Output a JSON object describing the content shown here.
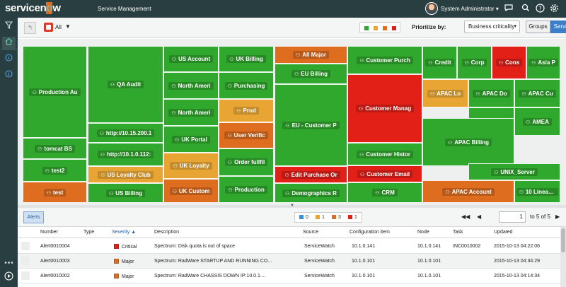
{
  "header": {
    "logo": "servicenow",
    "app_title": "Service Management",
    "user_name": "System Administrator",
    "user_caret": "▾",
    "icons": [
      "chat-icon",
      "search-icon",
      "help-icon",
      "gear-icon"
    ]
  },
  "leftnav": {
    "icons": [
      "filter-icon",
      "home-icon",
      "info-icon",
      "ellipsis-icon",
      "play-icon"
    ]
  },
  "toolbar": {
    "filter_label": "All",
    "filter_caret": "▼",
    "legend_colors": [
      "#2fa82d",
      "#e8a534",
      "#df6d1f",
      "#e32018"
    ],
    "prioritize_label": "Prioritize by:",
    "prioritize_value": "Business criticality",
    "groups_label": "Groups",
    "services_label": "Services"
  },
  "treemap": {
    "tiles": [
      {
        "label": "Production Au",
        "status": "green"
      },
      {
        "label": "QA Audit",
        "status": "green"
      },
      {
        "label": "US Account",
        "status": "green"
      },
      {
        "label": "UK Billing",
        "status": "green"
      },
      {
        "label": "All Major",
        "status": "orange"
      },
      {
        "label": "Customer Purch",
        "status": "green"
      },
      {
        "label": "EU Billing",
        "status": "green"
      },
      {
        "label": "Credit",
        "status": "green"
      },
      {
        "label": "Corp",
        "status": "green"
      },
      {
        "label": "Cons",
        "status": "red"
      },
      {
        "label": "Asia P",
        "status": "green"
      },
      {
        "label": "North Ameri",
        "status": "green"
      },
      {
        "label": "Purchasing",
        "status": "green"
      },
      {
        "label": "Customer Manag",
        "status": "red"
      },
      {
        "label": "APAC Lo",
        "status": "yellow"
      },
      {
        "label": "APAC Do",
        "status": "green"
      },
      {
        "label": "APAC Cu",
        "status": "green"
      },
      {
        "label": "North Ameri",
        "status": "green"
      },
      {
        "label": "Prod",
        "status": "yellow"
      },
      {
        "label": "EU - Customer P",
        "status": "green"
      },
      {
        "label": "http://10.15.200.1",
        "status": "green"
      },
      {
        "label": "UK Portal",
        "status": "green"
      },
      {
        "label": "User Verific",
        "status": "orange"
      },
      {
        "label": "AMEA",
        "status": "green"
      },
      {
        "label": "AMEA",
        "status": "green"
      },
      {
        "label": "tomcat BS",
        "status": "green"
      },
      {
        "label": "http://10.1.0.112:",
        "status": "green"
      },
      {
        "label": "APAC Billing",
        "status": "green"
      },
      {
        "label": "UK Loyalty",
        "status": "yellow"
      },
      {
        "label": "Order fullfil",
        "status": "green"
      },
      {
        "label": "Customer Histor",
        "status": "green"
      },
      {
        "label": "test2",
        "status": "green"
      },
      {
        "label": "US Loyalty Club",
        "status": "yellow"
      },
      {
        "label": "Edit Purchase Or",
        "status": "red"
      },
      {
        "label": "Customer Email",
        "status": "red"
      },
      {
        "label": "UNIX_Server",
        "status": "green"
      },
      {
        "label": "test",
        "status": "orange"
      },
      {
        "label": "US Billing",
        "status": "green"
      },
      {
        "label": "UK Custom",
        "status": "orange"
      },
      {
        "label": "Production",
        "status": "green"
      },
      {
        "label": "Demographics R",
        "status": "green"
      },
      {
        "label": "CRM",
        "status": "green"
      },
      {
        "label": "APAC Account",
        "status": "orange"
      },
      {
        "label": "10 Linear Cis",
        "status": "green"
      }
    ]
  },
  "alertbar": {
    "alerts_label": "Alerts",
    "severity_counts": [
      {
        "count": "0",
        "color": "#3d8fd6"
      },
      {
        "count": "1",
        "color": "#e8a534"
      },
      {
        "count": "3",
        "color": "#df6d1f"
      },
      {
        "count": "1",
        "color": "#e32018"
      }
    ],
    "page_current": "1",
    "page_total": "to 5 of 5",
    "first_icon": "◀◀",
    "prev_icon": "◀",
    "next_icon": "▶",
    "last_icon": "▶▶"
  },
  "table": {
    "columns": [
      "Number",
      "Type",
      "Severity",
      "Description",
      "Source",
      "Configuration item",
      "Node",
      "Task",
      "Updated"
    ],
    "sort_indicator": "▲",
    "rows": [
      {
        "number": "Alert0010004",
        "type": "",
        "severity": "Critical",
        "severity_color": "#e32018",
        "description": "Spectrum: Disk quota is out of space",
        "source": "ServiceWatch",
        "ci": "10.1.0.141",
        "node": "10.1.0.141",
        "task": "INC0010002",
        "updated": "2015-10-13 04:22:06"
      },
      {
        "number": "Alert0010003",
        "type": "",
        "severity": "Major",
        "severity_color": "#df6d1f",
        "description": "Spectrum: RadWare STARTUP AND RUNNING CO...",
        "source": "ServiceWatch",
        "ci": "10.1.0.101",
        "node": "10.1.0.101",
        "task": "",
        "updated": "2015-10-13 04:34:29"
      },
      {
        "number": "Alert0010002",
        "type": "",
        "severity": "Major",
        "severity_color": "#df6d1f",
        "description": "Spectrum: RadWare CHASSIS DOWN IP:10.0.1....",
        "source": "ServiceWatch",
        "ci": "10.1.0.101",
        "node": "10.1.0.101",
        "task": "",
        "updated": "2015-10-13 04:14:34"
      }
    ]
  }
}
